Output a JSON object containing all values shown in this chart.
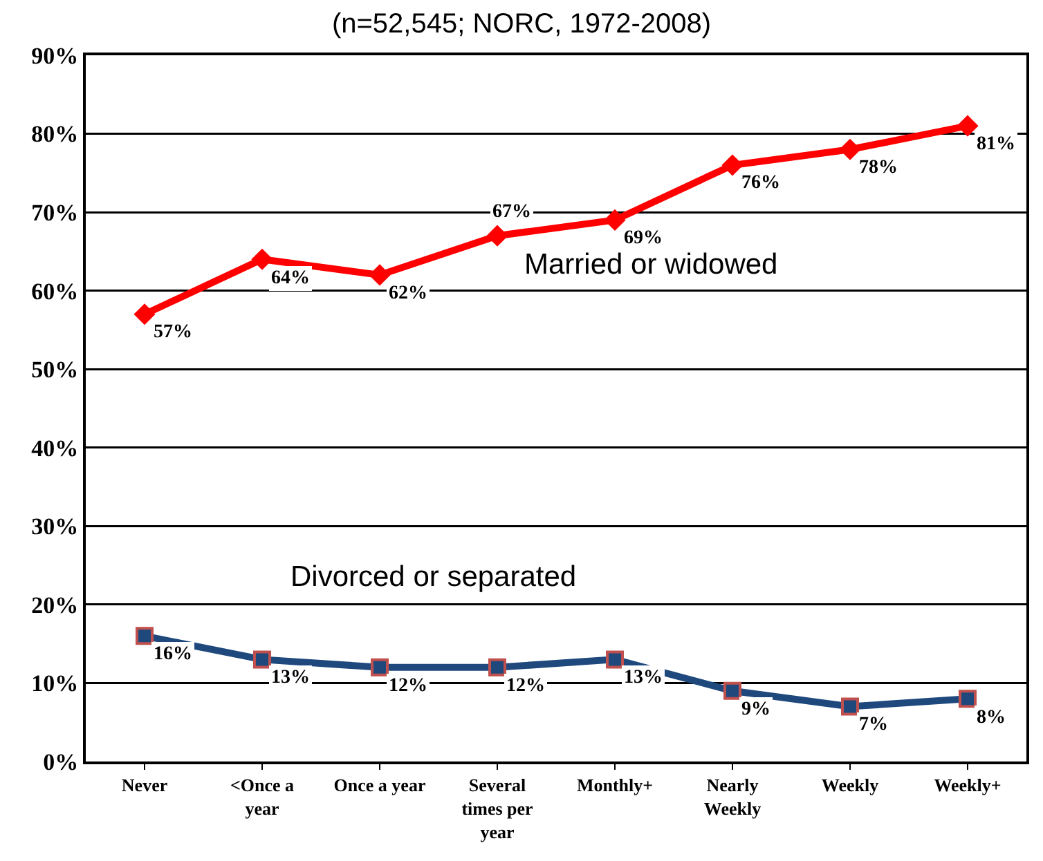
{
  "chart_data": {
    "type": "line",
    "title": "(n=52,545; NORC, 1972-2008)",
    "categories": [
      "Never",
      "<Once a\nyear",
      "Once a year",
      "Several\ntimes per\nyear",
      "Monthly+",
      "Nearly\nWeekly",
      "Weekly",
      "Weekly+"
    ],
    "series": [
      {
        "color": "#ff0000",
        "marker": "diamond",
        "values": [
          57,
          64,
          62,
          67,
          69,
          76,
          78,
          81
        ],
        "value_labels": [
          "57%",
          "64%",
          "62%",
          "67%",
          "69%",
          "76%",
          "78%",
          "81%"
        ]
      },
      {
        "color": "#1f497d",
        "marker": "square",
        "values": [
          16,
          13,
          12,
          12,
          13,
          9,
          7,
          8
        ],
        "value_labels": [
          "16%",
          "13%",
          "12%",
          "12%",
          "13%",
          "9%",
          "7%",
          "8%"
        ]
      }
    ],
    "ylim": [
      0,
      90
    ],
    "yticks": [
      {
        "value": 0,
        "label": "0%"
      },
      {
        "value": 10,
        "label": "10%"
      },
      {
        "value": 20,
        "label": "20%"
      },
      {
        "value": 30,
        "label": "30%"
      },
      {
        "value": 40,
        "label": "40%"
      },
      {
        "value": 50,
        "label": "50%"
      },
      {
        "value": 60,
        "label": "60%"
      },
      {
        "value": 70,
        "label": "70%"
      },
      {
        "value": 80,
        "label": "80%"
      },
      {
        "value": 90,
        "label": "90%"
      }
    ],
    "grid": "y",
    "annotations": [
      "Married or widowed",
      "Divorced or separated"
    ]
  }
}
